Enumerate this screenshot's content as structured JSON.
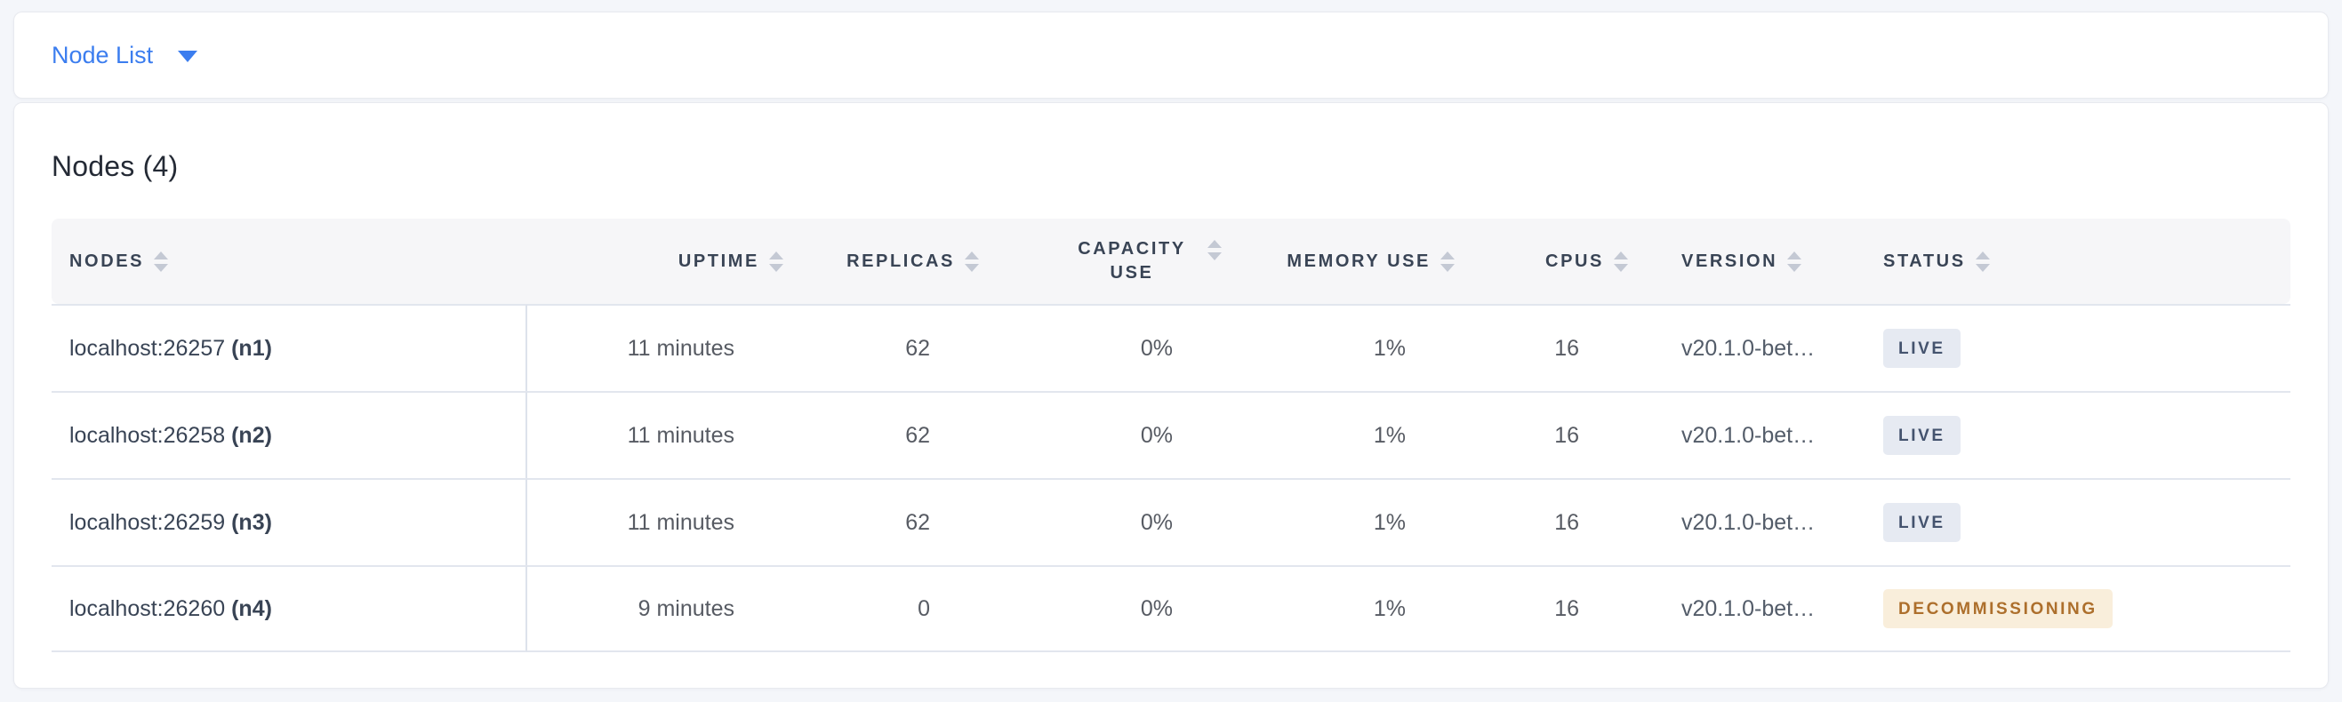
{
  "topbar": {
    "dropdown_label": "Node List"
  },
  "main": {
    "title": "Nodes (4)",
    "table": {
      "columns": [
        {
          "key": "nodes",
          "label": "NODES"
        },
        {
          "key": "uptime",
          "label": "UPTIME"
        },
        {
          "key": "replicas",
          "label": "REPLICAS"
        },
        {
          "key": "capacity",
          "label": "CAPACITY USE"
        },
        {
          "key": "memory",
          "label": "MEMORY USE"
        },
        {
          "key": "cpus",
          "label": "CPUS"
        },
        {
          "key": "version",
          "label": "VERSION"
        },
        {
          "key": "status",
          "label": "STATUS"
        }
      ],
      "rows": [
        {
          "address": "localhost:26257",
          "node_id": "(n1)",
          "uptime": "11 minutes",
          "replicas": "62",
          "capacity": "0%",
          "memory": "1%",
          "cpus": "16",
          "version": "v20.1.0-bet…",
          "status": "LIVE"
        },
        {
          "address": "localhost:26258",
          "node_id": "(n2)",
          "uptime": "11 minutes",
          "replicas": "62",
          "capacity": "0%",
          "memory": "1%",
          "cpus": "16",
          "version": "v20.1.0-bet…",
          "status": "LIVE"
        },
        {
          "address": "localhost:26259",
          "node_id": "(n3)",
          "uptime": "11 minutes",
          "replicas": "62",
          "capacity": "0%",
          "memory": "1%",
          "cpus": "16",
          "version": "v20.1.0-bet…",
          "status": "LIVE"
        },
        {
          "address": "localhost:26260",
          "node_id": "(n4)",
          "uptime": "9 minutes",
          "replicas": "0",
          "capacity": "0%",
          "memory": "1%",
          "cpus": "16",
          "version": "v20.1.0-bet…",
          "status": "DECOMMISSIONING"
        }
      ],
      "status_styles": {
        "LIVE": {
          "bg": "#e6eaf2",
          "fg": "#44536e"
        },
        "DECOMMISSIONING": {
          "bg": "#f9eedb",
          "fg": "#ad6f2c"
        }
      }
    }
  },
  "colors": {
    "accent_blue": "#3b7def",
    "page_background": "#f4f6fa",
    "header_band": "#f6f6f8",
    "row_border": "#e2e6ee"
  }
}
